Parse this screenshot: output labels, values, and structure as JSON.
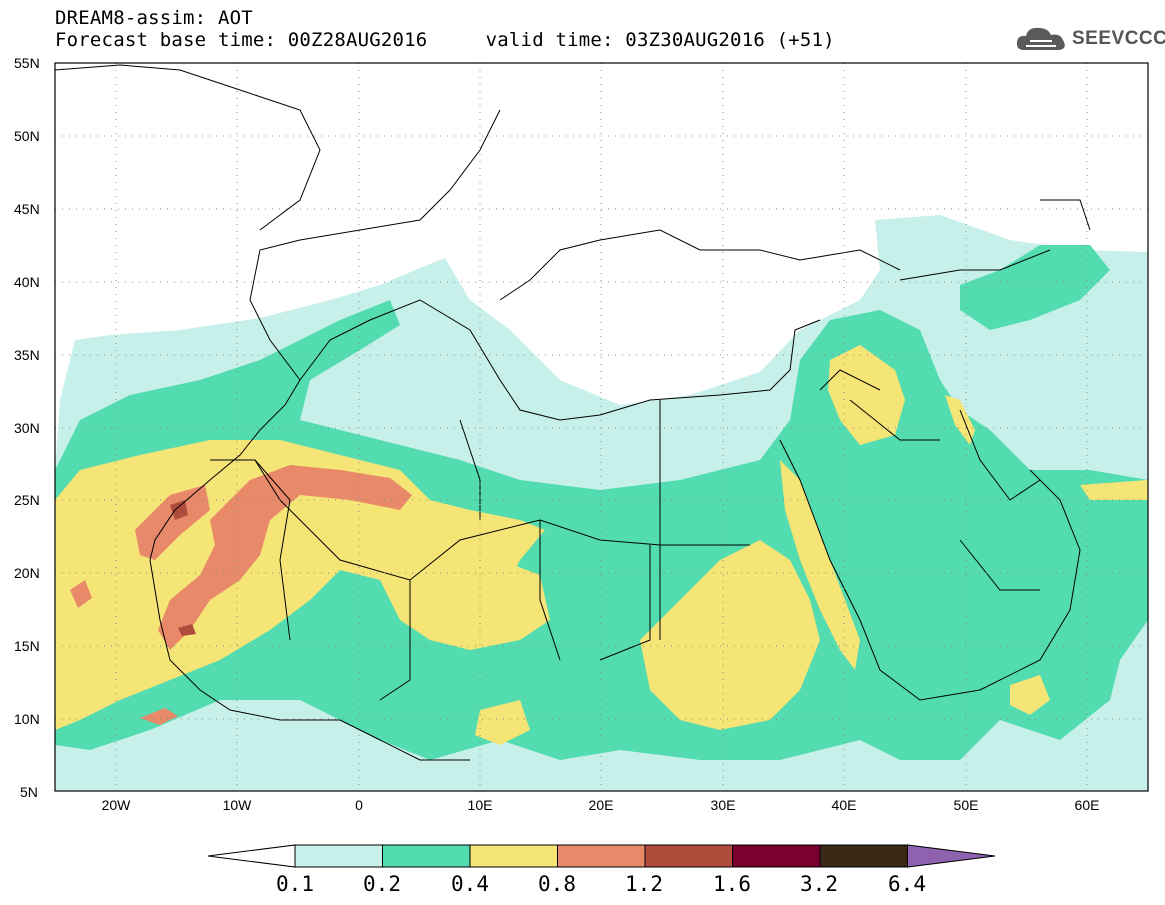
{
  "header": {
    "line1": "DREAM8-assim: AOT",
    "line2": "Forecast base time: 00Z28AUG2016     valid time: 03Z30AUG2016 (+51)"
  },
  "logo": {
    "text": "SEEVCCC",
    "icon": "cloud-icon"
  },
  "map": {
    "lon_range": [
      -25,
      65
    ],
    "lat_range": [
      5,
      55
    ],
    "lat_ticks": [
      "55N",
      "50N",
      "45N",
      "40N",
      "35N",
      "30N",
      "25N",
      "20N",
      "15N",
      "10N",
      "5N"
    ],
    "lon_ticks": [
      "20W",
      "10W",
      "0",
      "10E",
      "20E",
      "30E",
      "40E",
      "50E",
      "60E"
    ]
  },
  "colorbar": {
    "labels": [
      "0.1",
      "0.2",
      "0.4",
      "0.8",
      "1.2",
      "1.6",
      "3.2",
      "6.4"
    ],
    "colors": [
      "#ffffff",
      "#c8f0ea",
      "#52dcb0",
      "#f5e476",
      "#e8896a",
      "#b04c3c",
      "#7a0030",
      "#3c2816",
      "#8f62b0"
    ]
  }
}
